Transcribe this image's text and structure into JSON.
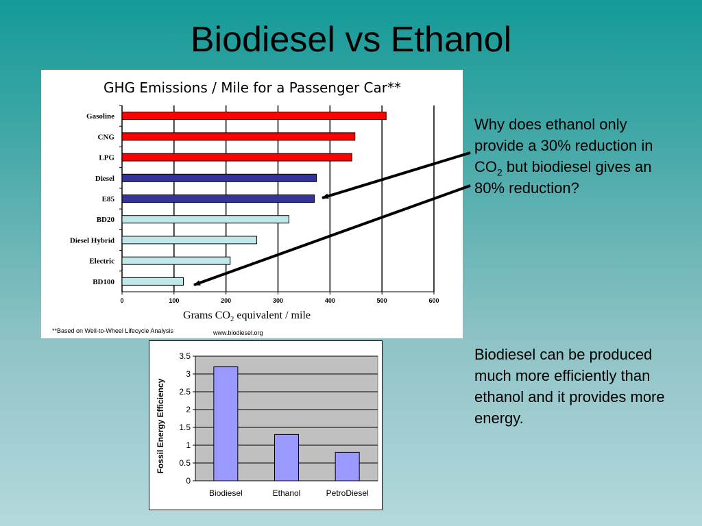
{
  "slide": {
    "title": "Biodiesel vs Ethanol",
    "text_1": {
      "before_sub": "Why does ethanol only provide a 30% reduction in CO",
      "sub": "2",
      "after_sub": " but biodiesel gives an 80% reduction?"
    },
    "text_2": "Biodiesel can be produced much more efficiently than ethanol and it provides more energy.",
    "arrow_color": "#000000"
  },
  "chart_data": [
    {
      "type": "bar",
      "orientation": "horizontal",
      "title": "GHG Emissions / Mile for a Passenger Car**",
      "xlabel": {
        "before_sub": "Grams CO",
        "sub": "2",
        "after_sub": " equivalent / mile"
      },
      "footnote": "**Based on Well-to-Wheel Lifecycle Analysis",
      "source": "www.biodiesel.org",
      "categories": [
        "Gasoline",
        "CNG",
        "LPG",
        "Diesel",
        "E85",
        "BD20",
        "Diesel Hybrid",
        "Electric",
        "BD100"
      ],
      "values": [
        508,
        448,
        442,
        374,
        370,
        321,
        259,
        208,
        118
      ],
      "bar_colors": [
        "#ff0000",
        "#ff0000",
        "#ff0000",
        "#333399",
        "#333399",
        "#c0e8e8",
        "#c0e8e8",
        "#c0e8e8",
        "#c0e8e8"
      ],
      "xlim": [
        0,
        600
      ],
      "xticks": [
        "0",
        "100",
        "200",
        "300",
        "400",
        "500",
        "600"
      ],
      "grid": "vertical"
    },
    {
      "type": "bar",
      "title": "",
      "xlabel": "",
      "ylabel": "Fossil Energy Efficiency",
      "categories": [
        "Biodiesel",
        "Ethanol",
        "PetroDiesel"
      ],
      "values": [
        3.2,
        1.3,
        0.8
      ],
      "bar_color": "#9999ff",
      "plot_background": "#c0c0c0",
      "ylim": [
        0,
        3.5
      ],
      "yticks": [
        "0",
        "0.5",
        "1",
        "1.5",
        "2",
        "2.5",
        "3",
        "3.5"
      ],
      "grid": "horizontal"
    }
  ]
}
